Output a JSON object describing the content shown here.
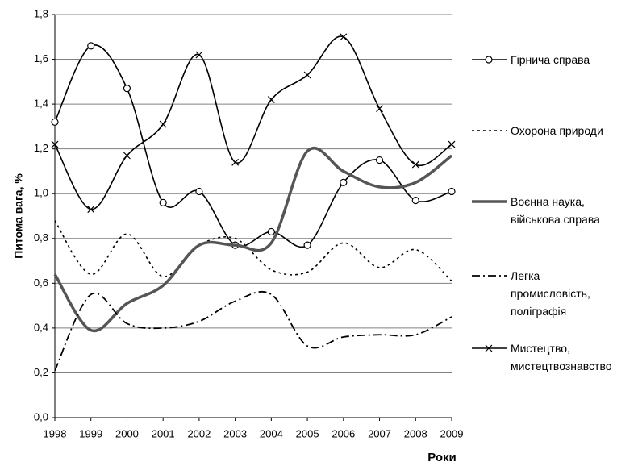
{
  "chart_data": {
    "type": "line",
    "x_label": "Роки",
    "y_label": "Питома вага, %",
    "categories": [
      "1998",
      "1999",
      "2000",
      "2001",
      "2002",
      "2003",
      "2004",
      "2005",
      "2006",
      "2007",
      "2008",
      "2009"
    ],
    "ylim": [
      0,
      1.8
    ],
    "yticks": [
      {
        "value": 0,
        "label": "0,0"
      },
      {
        "value": 0.2,
        "label": "0,2"
      },
      {
        "value": 0.4,
        "label": "0,4"
      },
      {
        "value": 0.6,
        "label": "0,6"
      },
      {
        "value": 0.8,
        "label": "0,8"
      },
      {
        "value": 1.0,
        "label": "1,0"
      },
      {
        "value": 1.2,
        "label": "1,2"
      },
      {
        "value": 1.4,
        "label": "1,4"
      },
      {
        "value": 1.6,
        "label": "1,6"
      },
      {
        "value": 1.8,
        "label": "1,8"
      }
    ],
    "grid": true,
    "smooth": true,
    "legend": "right",
    "series": [
      {
        "name": "Гірнича справа",
        "color": "#000000",
        "style": "solid",
        "marker": "circle",
        "values": [
          1.32,
          1.66,
          1.47,
          0.96,
          1.01,
          0.77,
          0.83,
          0.77,
          1.05,
          1.15,
          0.97,
          1.01
        ]
      },
      {
        "name": "Охорона природи",
        "color": "#000000",
        "style": "dotted",
        "marker": "none",
        "values": [
          0.88,
          0.64,
          0.82,
          0.63,
          0.77,
          0.8,
          0.66,
          0.65,
          0.78,
          0.67,
          0.75,
          0.61
        ]
      },
      {
        "name": "Воєнна наука,\nвійськова справа",
        "color": "#555555",
        "style": "thick",
        "marker": "none",
        "values": [
          0.64,
          0.39,
          0.51,
          0.59,
          0.77,
          0.77,
          0.78,
          1.19,
          1.1,
          1.03,
          1.05,
          1.17
        ]
      },
      {
        "name": "Легка\nпромисловість,\nполіграфія",
        "color": "#000000",
        "style": "dashdot",
        "marker": "none",
        "values": [
          0.21,
          0.55,
          0.42,
          0.4,
          0.43,
          0.52,
          0.55,
          0.32,
          0.36,
          0.37,
          0.37,
          0.45
        ]
      },
      {
        "name": "Мистецтво,\nмистецтвознавство",
        "color": "#000000",
        "style": "solid",
        "marker": "x",
        "values": [
          1.22,
          0.93,
          1.17,
          1.31,
          1.62,
          1.14,
          1.42,
          1.53,
          1.7,
          1.38,
          1.13,
          1.22
        ]
      }
    ]
  }
}
